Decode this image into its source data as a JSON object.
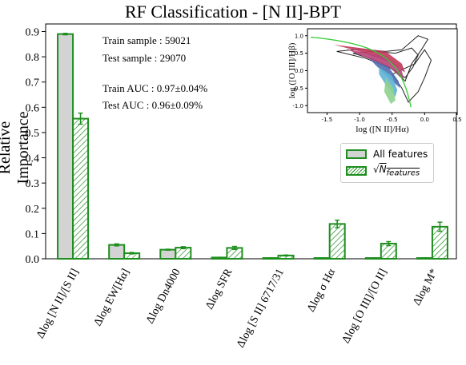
{
  "chart_data": [
    {
      "type": "bar",
      "title": "RF Classification - [N II]-BPT",
      "ylabel": "Relative Importance",
      "xlabel": "",
      "ylim": [
        0,
        0.93
      ],
      "yticks": [
        "0.0",
        "0.1",
        "0.2",
        "0.3",
        "0.4",
        "0.5",
        "0.6",
        "0.7",
        "0.8",
        "0.9"
      ],
      "categories": [
        "Δlog [N II]/[S II]",
        "Δlog EW[Hα]",
        "Δlog Dn4000",
        "Δlog SFR",
        "Δlog [S II] 6717/31",
        "Δlog σ Hα",
        "Δlog [O III]/[O II]",
        "Δlog M*"
      ],
      "series": [
        {
          "name": "All features",
          "values": [
            0.89,
            0.055,
            0.036,
            0.005,
            0.003,
            0.003,
            0.003,
            0.003
          ],
          "errors": [
            0.003,
            0.004,
            0.002,
            0.001,
            0.001,
            0.001,
            0.001,
            0.001
          ],
          "color": "#d3d3d3",
          "edge": "#1e8e1e"
        },
        {
          "name": "√N_features",
          "values": [
            0.555,
            0.022,
            0.044,
            0.043,
            0.013,
            0.138,
            0.06,
            0.127
          ],
          "errors": [
            0.022,
            0.003,
            0.004,
            0.006,
            0.002,
            0.015,
            0.008,
            0.018
          ],
          "color": "#ffffff",
          "hatch": "#1e8e1e",
          "edge": "#1e8e1e"
        }
      ],
      "annotations": [
        "Train sample : 59021",
        "Test sample : 29070",
        "Train AUC : 0.97±0.04%",
        "Test AUC : 0.96±0.09%"
      ],
      "legend": "center-right"
    },
    {
      "type": "line",
      "title": "",
      "xlabel": "log ([N II]/Hα)",
      "ylabel": "log ([O III]/Hβ)",
      "xlim": [
        -1.8,
        0.5
      ],
      "ylim": [
        -1.2,
        1.2
      ],
      "xticks": [
        "-1.5",
        "-1.0",
        "-0.5",
        "0.0",
        "0.5"
      ],
      "yticks": [
        "-1.0",
        "-0.5",
        "0.0",
        "0.5",
        "1.0"
      ],
      "series": [
        {
          "name": "",
          "kind": "Kauffmann demarcation",
          "color": "#33cc33"
        }
      ]
    }
  ],
  "legend_labels": {
    "all": "All features",
    "sqrt": "√",
    "sqrt_n": "N",
    "sqrt_sub": "features"
  },
  "text": {
    "title": "RF Classification - [N II]-BPT",
    "ylabel": "Relative Importance",
    "train_sample": "Train sample : 59021",
    "test_sample": "Test sample : 29070",
    "train_auc": "Train AUC : 0.97±0.04%",
    "test_auc": "Test AUC : 0.96±0.09%"
  }
}
